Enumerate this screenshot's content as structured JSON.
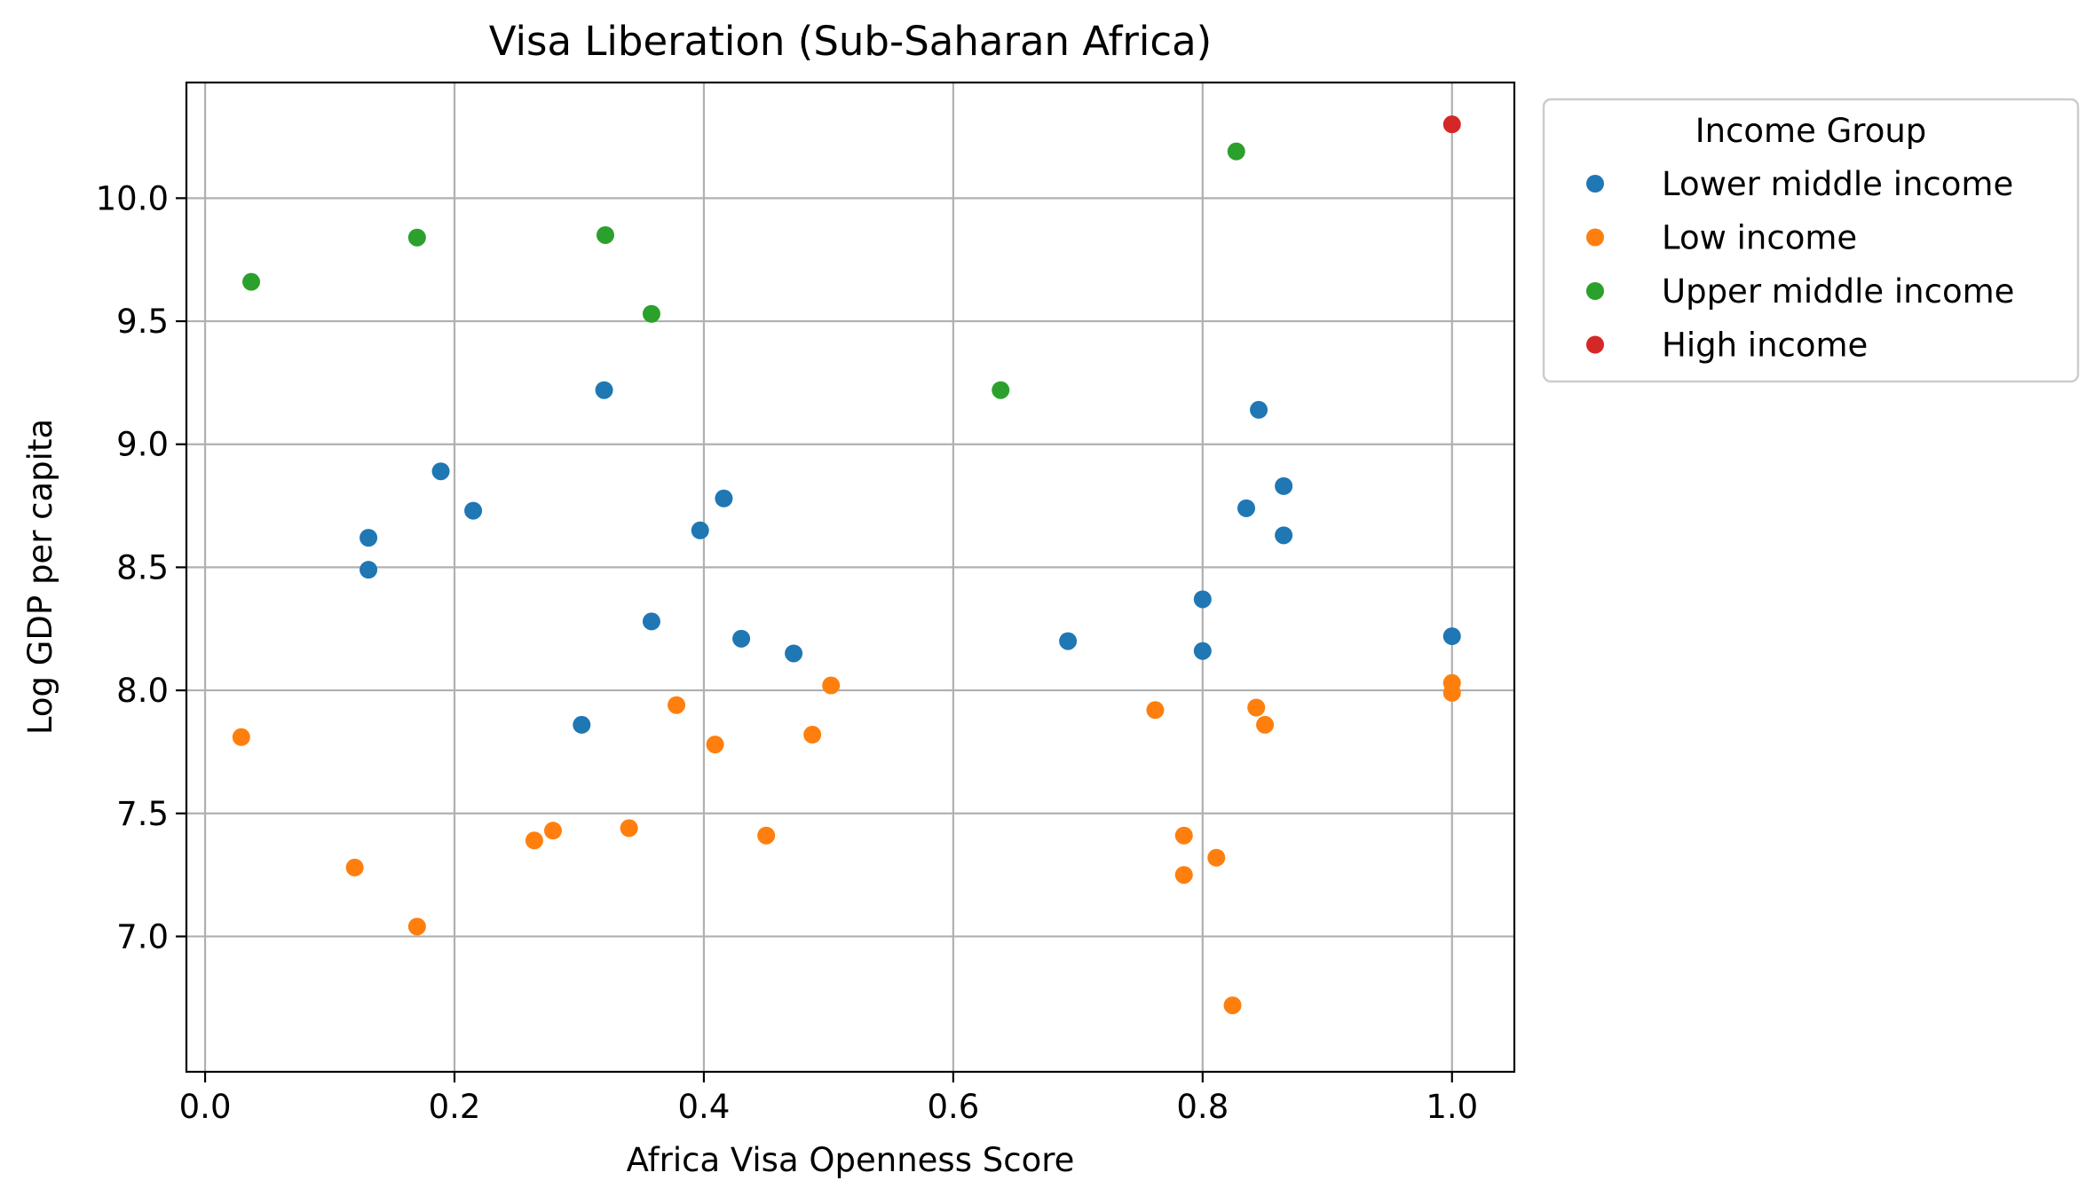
{
  "chart_data": {
    "type": "scatter",
    "title": "Visa Liberation (Sub-Saharan Africa)",
    "xlabel": "Africa Visa Openness Score",
    "ylabel": "Log GDP per capita",
    "xlim": [
      -0.015,
      1.05
    ],
    "ylim": [
      6.45,
      10.47
    ],
    "xticks": [
      0.0,
      0.2,
      0.4,
      0.6,
      0.8,
      1.0
    ],
    "xtick_labels": [
      "0.0",
      "0.2",
      "0.4",
      "0.6",
      "0.8",
      "1.0"
    ],
    "yticks": [
      7.0,
      7.5,
      8.0,
      8.5,
      9.0,
      9.5,
      10.0
    ],
    "ytick_labels": [
      "7.0",
      "7.5",
      "8.0",
      "8.5",
      "9.0",
      "9.5",
      "10.0"
    ],
    "grid": true,
    "legend": {
      "title": "Income Group",
      "placement": "outside-right-top"
    },
    "series": [
      {
        "name": "Lower middle income",
        "color": "#1f77b4",
        "points": [
          [
            0.131,
            8.62
          ],
          [
            0.131,
            8.49
          ],
          [
            0.189,
            8.89
          ],
          [
            0.215,
            8.73
          ],
          [
            0.32,
            9.22
          ],
          [
            0.302,
            7.86
          ],
          [
            0.358,
            8.28
          ],
          [
            0.397,
            8.65
          ],
          [
            0.416,
            8.78
          ],
          [
            0.43,
            8.21
          ],
          [
            0.472,
            8.15
          ],
          [
            0.692,
            8.2
          ],
          [
            0.8,
            8.37
          ],
          [
            0.8,
            8.16
          ],
          [
            0.835,
            8.74
          ],
          [
            0.845,
            9.14
          ],
          [
            0.865,
            8.83
          ],
          [
            0.865,
            8.63
          ],
          [
            1.0,
            8.22
          ]
        ]
      },
      {
        "name": "Low income",
        "color": "#ff7f0e",
        "points": [
          [
            0.029,
            7.81
          ],
          [
            0.12,
            7.28
          ],
          [
            0.17,
            7.04
          ],
          [
            0.264,
            7.39
          ],
          [
            0.279,
            7.43
          ],
          [
            0.34,
            7.44
          ],
          [
            0.378,
            7.94
          ],
          [
            0.409,
            7.78
          ],
          [
            0.45,
            7.41
          ],
          [
            0.487,
            7.82
          ],
          [
            0.502,
            8.02
          ],
          [
            0.762,
            7.92
          ],
          [
            0.785,
            7.41
          ],
          [
            0.785,
            7.25
          ],
          [
            0.811,
            7.32
          ],
          [
            0.824,
            6.72
          ],
          [
            0.843,
            7.93
          ],
          [
            0.85,
            7.86
          ],
          [
            1.0,
            8.03
          ],
          [
            1.0,
            7.99
          ]
        ]
      },
      {
        "name": "Upper middle income",
        "color": "#2ca02c",
        "points": [
          [
            0.037,
            9.66
          ],
          [
            0.17,
            9.84
          ],
          [
            0.321,
            9.85
          ],
          [
            0.358,
            9.53
          ],
          [
            0.638,
            9.22
          ],
          [
            0.827,
            10.19
          ]
        ]
      },
      {
        "name": "High income",
        "color": "#d62728",
        "points": [
          [
            1.0,
            10.3
          ]
        ]
      }
    ]
  }
}
